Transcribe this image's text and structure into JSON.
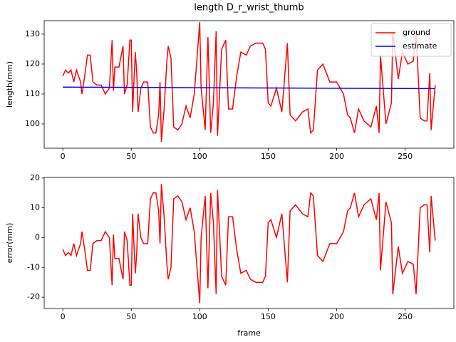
{
  "chart_data": [
    {
      "type": "line",
      "title": "length D_r_wrist_thumb",
      "ylabel": "length(mm)",
      "x": [
        0,
        2,
        4,
        6,
        8,
        10,
        13,
        14,
        16,
        18,
        20,
        22,
        25,
        28,
        31,
        34,
        36,
        37,
        38,
        41,
        44,
        45,
        47,
        49,
        50,
        51,
        52,
        53,
        54,
        55,
        57,
        59,
        62,
        64,
        66,
        68,
        70,
        71,
        72,
        74,
        76,
        77,
        79,
        81,
        84,
        87,
        90,
        93,
        96,
        100,
        101,
        104,
        106,
        108,
        110,
        112,
        113,
        116,
        119,
        121,
        124,
        127,
        130,
        134,
        137,
        141,
        146,
        148,
        150,
        152,
        156,
        160,
        164,
        166,
        170,
        175,
        179,
        181,
        183,
        186,
        190,
        195,
        200,
        205,
        208,
        210,
        213,
        216,
        220,
        225,
        229,
        231,
        232,
        236,
        240,
        241,
        245,
        248,
        252,
        256,
        258,
        261,
        264,
        266,
        268,
        269,
        272
      ],
      "series": [
        {
          "name": "ground",
          "color": "#ff0000",
          "values": [
            116,
            118,
            117,
            118,
            114,
            118,
            114,
            110,
            116,
            123,
            123,
            114,
            113,
            113,
            110,
            112,
            128,
            111,
            119,
            119,
            126,
            110,
            113,
            128,
            128,
            104,
            115,
            124,
            117,
            104,
            112,
            114,
            114,
            99,
            97,
            97,
            103,
            114,
            94,
            105,
            121,
            126,
            122,
            99,
            98,
            100,
            106,
            102,
            110,
            134,
            112,
            98,
            129,
            97,
            107,
            131,
            96,
            125,
            128,
            105,
            105,
            116,
            124,
            123,
            126,
            127,
            127,
            125,
            107,
            106,
            112,
            104,
            127,
            103,
            101,
            104,
            105,
            97,
            98,
            118,
            120,
            114,
            114,
            110,
            103,
            102,
            97,
            105,
            101,
            99,
            106,
            97,
            123,
            100,
            107,
            131,
            115,
            124,
            120,
            121,
            131,
            102,
            101,
            101,
            117,
            98,
            113
          ]
        },
        {
          "name": "estimate",
          "color": "#0000ff",
          "x": [
            0,
            272
          ],
          "values": [
            112.3,
            111.8
          ]
        }
      ],
      "xlim": [
        -13.6,
        285.6
      ],
      "xticks": [
        0,
        50,
        100,
        150,
        200,
        250
      ],
      "ylim": [
        91.9,
        134.5
      ],
      "yticks": [
        100,
        110,
        120,
        130
      ],
      "legend": "upper right"
    },
    {
      "type": "line",
      "xlabel": "frame",
      "ylabel": "error(mm)",
      "x": [
        0,
        2,
        4,
        6,
        8,
        10,
        13,
        14,
        16,
        18,
        20,
        22,
        25,
        28,
        31,
        34,
        36,
        37,
        38,
        41,
        44,
        45,
        47,
        49,
        50,
        51,
        52,
        53,
        54,
        55,
        57,
        59,
        62,
        64,
        66,
        68,
        70,
        71,
        72,
        74,
        76,
        77,
        79,
        81,
        84,
        87,
        90,
        93,
        96,
        100,
        101,
        104,
        106,
        108,
        110,
        112,
        113,
        116,
        119,
        121,
        124,
        127,
        130,
        134,
        137,
        141,
        146,
        148,
        150,
        152,
        156,
        160,
        164,
        166,
        170,
        175,
        179,
        181,
        183,
        186,
        190,
        195,
        200,
        205,
        208,
        210,
        213,
        216,
        220,
        225,
        229,
        231,
        232,
        236,
        240,
        241,
        245,
        248,
        252,
        256,
        258,
        261,
        264,
        266,
        268,
        269,
        272
      ],
      "color": "#ff0000",
      "values": [
        -4,
        -6,
        -5,
        -6,
        -2,
        -6,
        -2,
        2,
        -4,
        -11,
        -11,
        -2,
        -1,
        -1,
        2,
        0,
        -16,
        1,
        -7,
        -7,
        -14,
        2,
        -1,
        -16,
        -16,
        8,
        -3,
        -12,
        -5,
        8,
        0,
        -2,
        -2,
        13,
        15,
        15,
        9,
        -2,
        18,
        7,
        -9,
        -14,
        -10,
        13,
        14,
        12,
        6,
        10,
        2,
        -22,
        0,
        14,
        -17,
        15,
        5,
        -19,
        16,
        -13,
        -16,
        7,
        7,
        -4,
        -12,
        -11,
        -14,
        -15,
        -15,
        -13,
        5,
        6,
        0,
        8,
        -15,
        9,
        11,
        8,
        7,
        15,
        14,
        -6,
        -8,
        -2,
        -2,
        2,
        9,
        10,
        15,
        7,
        11,
        13,
        6,
        15,
        -11,
        12,
        5,
        -19,
        -3,
        -12,
        -8,
        -9,
        -19,
        10,
        11,
        11,
        -5,
        14,
        -1
      ],
      "xlim": [
        -13.6,
        285.6
      ],
      "xticks": [
        0,
        50,
        100,
        150,
        200,
        250
      ],
      "ylim": [
        -23.8,
        20.2
      ],
      "yticks": [
        -20,
        -10,
        0,
        10,
        20
      ]
    }
  ]
}
